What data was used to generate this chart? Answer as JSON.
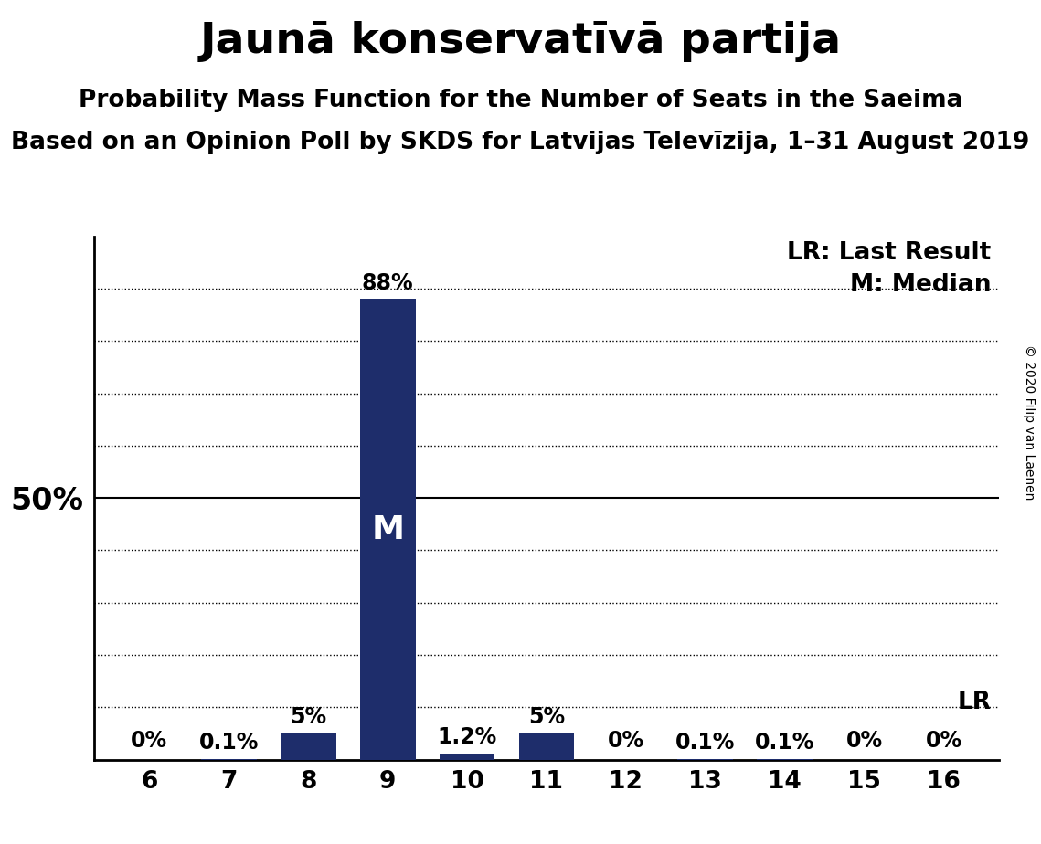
{
  "title": "Jaunā konservatīvā partija",
  "subtitle": "Probability Mass Function for the Number of Seats in the Saeima",
  "subsubtitle": "Based on an Opinion Poll by SKDS for Latvijas Televīzija, 1–31 August 2019",
  "copyright": "© 2020 Filip van Laenen",
  "seats": [
    6,
    7,
    8,
    9,
    10,
    11,
    12,
    13,
    14,
    15,
    16
  ],
  "probabilities": [
    0.0,
    0.1,
    5.0,
    88.0,
    1.2,
    5.0,
    0.0,
    0.1,
    0.1,
    0.0,
    0.0
  ],
  "bar_labels": [
    "0%",
    "0.1%",
    "5%",
    "88%",
    "1.2%",
    "5%",
    "0%",
    "0.1%",
    "0.1%",
    "0%",
    "0%"
  ],
  "bar_color": "#1e2d6b",
  "median_seat": 9,
  "lr_seat": 16,
  "ylim": [
    0,
    100
  ],
  "ylabel_50": "50%",
  "background_color": "#ffffff",
  "legend_lr": "LR: Last Result",
  "legend_m": "M: Median",
  "title_fontsize": 34,
  "subtitle_fontsize": 19,
  "subsubtitle_fontsize": 19,
  "bar_label_fontsize": 17,
  "median_label_fontsize": 26,
  "axis_tick_fontsize": 19,
  "ylabel_fontsize": 24,
  "legend_fontsize": 19,
  "copyright_fontsize": 10
}
